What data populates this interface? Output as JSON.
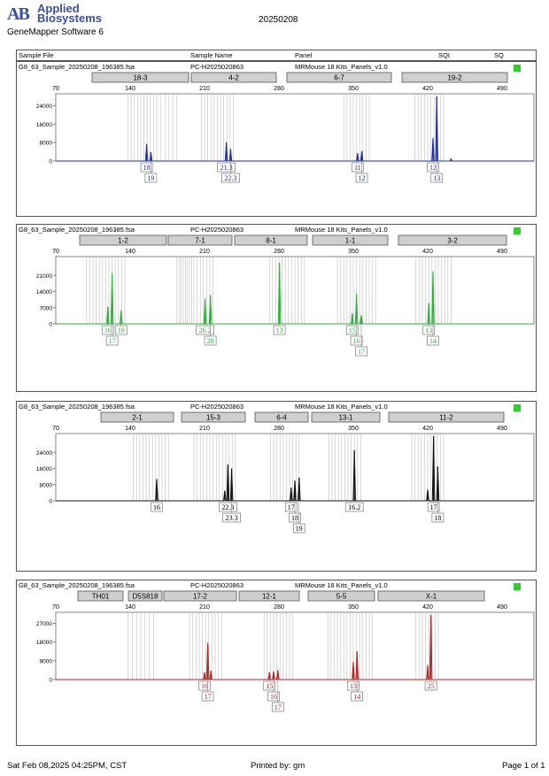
{
  "header": {
    "logo": "AB",
    "brand_line1": "Applied",
    "brand_line2": "Biosystems",
    "software": "GeneMapper Software 6",
    "run_date": "20250208"
  },
  "columns": {
    "sample_file": "Sample File",
    "sample_name": "Sample Name",
    "panel": "Panel",
    "sqi": "SQI",
    "sq": "SQ"
  },
  "sample": {
    "file": "G8_63_Sample_20250208_196385.fsa",
    "name": "PC-H2025020863",
    "panel": "MRMouse 18 Kits_Panels_v1.0"
  },
  "colors": {
    "blue": "#1f2f9a",
    "green": "#2fae3c",
    "black": "#111111",
    "red": "#b52525",
    "sq_ok": "#2ecc2e"
  },
  "chart_data": [
    {
      "type": "line",
      "dye": "blue",
      "xlim": [
        70,
        520
      ],
      "xticks": [
        70,
        140,
        210,
        280,
        350,
        420,
        490
      ],
      "ylim": [
        0,
        28000
      ],
      "yticks": [
        0,
        8000,
        16000,
        24000
      ],
      "markers": [
        {
          "label": "18-3",
          "start": 103,
          "end": 212
        },
        {
          "label": "4-2",
          "start": 215,
          "end": 311
        },
        {
          "label": "6-7",
          "start": 323,
          "end": 441
        },
        {
          "label": "19-2",
          "start": 453,
          "end": 572
        }
      ],
      "bins": [
        138,
        141,
        144,
        147,
        150,
        153,
        156,
        159,
        162,
        165,
        169,
        173,
        176,
        180,
        184,
        207,
        210,
        213,
        216,
        219,
        222,
        225,
        228,
        231,
        234,
        237,
        341,
        344,
        347,
        350,
        353,
        356,
        359,
        362,
        365,
        408,
        411,
        414,
        417,
        420,
        423,
        426,
        429,
        432,
        435
      ],
      "peaks": [
        {
          "x": 155.5,
          "h": 7400
        },
        {
          "x": 159.5,
          "h": 3800
        },
        {
          "x": 230.5,
          "h": 8100
        },
        {
          "x": 234.5,
          "h": 5200
        },
        {
          "x": 354,
          "h": 3400
        },
        {
          "x": 358,
          "h": 4300
        },
        {
          "x": 425,
          "h": 10000
        },
        {
          "x": 428.5,
          "h": 28000
        },
        {
          "x": 442,
          "h": 900
        }
      ],
      "calls": [
        {
          "label": "18",
          "x": 155.5,
          "row": 0
        },
        {
          "label": "19",
          "x": 159.5,
          "row": 1
        },
        {
          "label": "21.3",
          "x": 230.5,
          "row": 0
        },
        {
          "label": "22.3",
          "x": 234.5,
          "row": 1
        },
        {
          "label": "11",
          "x": 354,
          "row": 0
        },
        {
          "label": "12",
          "x": 358,
          "row": 1
        },
        {
          "label": "12",
          "x": 425,
          "row": 0
        },
        {
          "label": "13",
          "x": 428.5,
          "row": 1
        }
      ]
    },
    {
      "type": "line",
      "dye": "green",
      "xlim": [
        70,
        520
      ],
      "xticks": [
        70,
        140,
        210,
        280,
        350,
        420,
        490
      ],
      "ylim": [
        0,
        28000
      ],
      "yticks": [
        0,
        7000,
        14000,
        21000
      ],
      "markers": [
        {
          "label": "1-2",
          "start": 89,
          "end": 187
        },
        {
          "label": "7-1",
          "start": 189,
          "end": 261
        },
        {
          "label": "8-1",
          "start": 264,
          "end": 346
        },
        {
          "label": "1-1",
          "start": 352,
          "end": 437
        },
        {
          "label": "3-2",
          "start": 449,
          "end": 571
        }
      ],
      "bins": [
        99,
        102,
        105,
        108,
        111,
        114,
        117,
        120,
        123,
        126,
        129,
        132,
        135,
        184,
        186,
        188,
        190,
        192,
        194,
        196,
        198,
        200,
        203,
        206,
        209,
        212,
        215,
        218,
        271,
        274,
        277,
        280,
        283,
        286,
        289,
        292,
        295,
        298,
        301,
        304,
        335,
        338,
        341,
        344,
        347,
        350,
        353,
        356,
        359,
        362,
        365,
        368,
        371,
        409,
        412,
        415,
        418,
        421,
        424,
        427,
        430,
        433,
        436,
        439,
        442
      ],
      "peaks": [
        {
          "x": 119,
          "h": 7400
        },
        {
          "x": 123,
          "h": 22000
        },
        {
          "x": 131.5,
          "h": 5800
        },
        {
          "x": 210.5,
          "h": 11000
        },
        {
          "x": 215.5,
          "h": 12500
        },
        {
          "x": 280.5,
          "h": 26500
        },
        {
          "x": 349,
          "h": 4500
        },
        {
          "x": 353,
          "h": 13000
        },
        {
          "x": 357.5,
          "h": 3700
        },
        {
          "x": 421,
          "h": 9000
        },
        {
          "x": 425,
          "h": 22800
        }
      ],
      "calls": [
        {
          "label": "16",
          "x": 119,
          "row": 0
        },
        {
          "label": "17",
          "x": 123,
          "row": 1
        },
        {
          "label": "19",
          "x": 131.5,
          "row": 0
        },
        {
          "label": "26.2",
          "x": 210.5,
          "row": 0
        },
        {
          "label": "28",
          "x": 215.5,
          "row": 1
        },
        {
          "label": "13",
          "x": 280.5,
          "row": 0
        },
        {
          "label": "15",
          "x": 349,
          "row": 0
        },
        {
          "label": "16",
          "x": 353,
          "row": 1
        },
        {
          "label": "17",
          "x": 357.5,
          "row": 2
        },
        {
          "label": "13",
          "x": 421,
          "row": 0
        },
        {
          "label": "14",
          "x": 425,
          "row": 1
        }
      ]
    },
    {
      "type": "line",
      "dye": "black",
      "xlim": [
        70,
        520
      ],
      "xticks": [
        70,
        140,
        210,
        280,
        350,
        420,
        490
      ],
      "ylim": [
        0,
        32000
      ],
      "yticks": [
        0,
        8000,
        16000,
        24000
      ],
      "markers": [
        {
          "label": "2-1",
          "start": 113,
          "end": 195
        },
        {
          "label": "15-3",
          "start": 204,
          "end": 276
        },
        {
          "label": "6-4",
          "start": 287,
          "end": 347
        },
        {
          "label": "13-1",
          "start": 351,
          "end": 428
        },
        {
          "label": "11-2",
          "start": 438,
          "end": 568
        }
      ],
      "bins": [
        143,
        146,
        149,
        152,
        155,
        158,
        161,
        164,
        167,
        170,
        173,
        176,
        200,
        203,
        206,
        209,
        212,
        215,
        218,
        221,
        224,
        227,
        230,
        233,
        236,
        239,
        272,
        275,
        278,
        281,
        284,
        287,
        290,
        293,
        296,
        299,
        327,
        330,
        333,
        336,
        339,
        342,
        345,
        348,
        351,
        354,
        357,
        405,
        408,
        411,
        414,
        417,
        420,
        423,
        426,
        429,
        432,
        435
      ],
      "peaks": [
        {
          "x": 165,
          "h": 10800
        },
        {
          "x": 229,
          "h": 5000
        },
        {
          "x": 232,
          "h": 18000
        },
        {
          "x": 235.5,
          "h": 16000
        },
        {
          "x": 291.5,
          "h": 6500
        },
        {
          "x": 295,
          "h": 10000
        },
        {
          "x": 299,
          "h": 11500
        },
        {
          "x": 351,
          "h": 25000
        },
        {
          "x": 420,
          "h": 5500
        },
        {
          "x": 425.5,
          "h": 32000
        },
        {
          "x": 429.5,
          "h": 17000
        }
      ],
      "calls": [
        {
          "label": "16",
          "x": 165,
          "row": 0
        },
        {
          "label": "22.3",
          "x": 232,
          "row": 0
        },
        {
          "label": "23.3",
          "x": 235.5,
          "row": 1
        },
        {
          "label": "17",
          "x": 291.5,
          "row": 0
        },
        {
          "label": "18",
          "x": 295,
          "row": 1
        },
        {
          "label": "19",
          "x": 299,
          "row": 2
        },
        {
          "label": "16.2",
          "x": 351,
          "row": 0
        },
        {
          "label": "17",
          "x": 425.5,
          "row": 0
        },
        {
          "label": "18",
          "x": 429.5,
          "row": 1
        }
      ]
    },
    {
      "type": "line",
      "dye": "red",
      "xlim": [
        70,
        520
      ],
      "xticks": [
        70,
        140,
        210,
        280,
        350,
        420,
        490
      ],
      "ylim": [
        0,
        31000
      ],
      "yticks": [
        0,
        9000,
        18000,
        27000
      ],
      "markers": [
        {
          "label": "TH01",
          "start": 87,
          "end": 138
        },
        {
          "label": "D5S818",
          "start": 144,
          "end": 182
        },
        {
          "label": "17-2",
          "start": 184,
          "end": 266
        },
        {
          "label": "12-1",
          "start": 269,
          "end": 337
        },
        {
          "label": "5-5",
          "start": 347,
          "end": 422
        },
        {
          "label": "X-1",
          "start": 426,
          "end": 546
        }
      ],
      "bins": [
        138,
        142,
        146,
        150,
        154,
        158,
        162,
        196,
        199,
        202,
        205,
        208,
        211,
        214,
        217,
        220,
        223,
        226,
        266,
        269,
        272,
        275,
        278,
        281,
        284,
        287,
        290,
        293,
        326,
        329,
        332,
        335,
        338,
        341,
        344,
        347,
        350,
        353,
        356,
        359,
        362,
        365,
        368,
        409,
        412,
        415,
        418,
        421,
        424,
        427,
        430
      ],
      "peaks": [
        {
          "x": 210,
          "h": 3500
        },
        {
          "x": 213,
          "h": 17500
        },
        {
          "x": 216,
          "h": 4200
        },
        {
          "x": 271,
          "h": 3500
        },
        {
          "x": 275,
          "h": 4000
        },
        {
          "x": 279,
          "h": 4500
        },
        {
          "x": 350,
          "h": 8500
        },
        {
          "x": 353.5,
          "h": 13500
        },
        {
          "x": 420,
          "h": 7000
        },
        {
          "x": 423,
          "h": 31000
        }
      ],
      "calls": [
        {
          "label": "16",
          "x": 210,
          "row": 0
        },
        {
          "label": "17",
          "x": 213,
          "row": 1
        },
        {
          "label": "15",
          "x": 271,
          "row": 0
        },
        {
          "label": "16",
          "x": 275,
          "row": 1
        },
        {
          "label": "17",
          "x": 279,
          "row": 2
        },
        {
          "label": "13",
          "x": 350,
          "row": 0
        },
        {
          "label": "14",
          "x": 353.5,
          "row": 1
        },
        {
          "label": "25",
          "x": 423,
          "row": 0
        }
      ]
    }
  ],
  "footer": {
    "date": "Sat Feb 08,2025 04:25PM, CST",
    "printed_by": "Printed by: gm",
    "page": "Page 1 of 1"
  }
}
